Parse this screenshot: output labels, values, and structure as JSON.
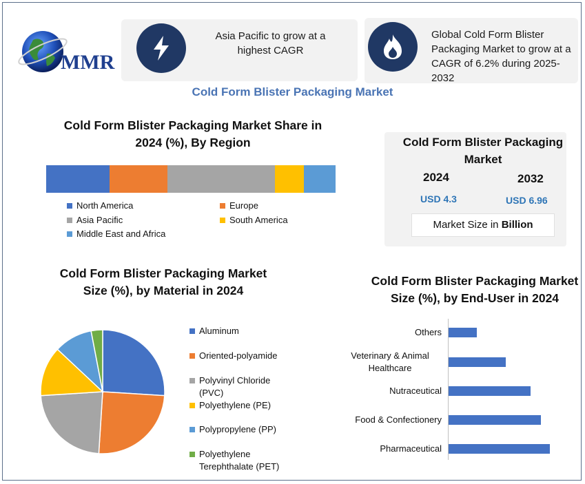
{
  "logo": {
    "text": "MMR"
  },
  "highlights": [
    {
      "icon": "lightning-icon",
      "text": "Asia Pacific to grow at a highest CAGR"
    },
    {
      "icon": "flame-icon",
      "text": "Global Cold Form Blister Packaging Market to grow at a CAGR of 6.2% during 2025-2032"
    }
  ],
  "main_title": "Cold Form Blister Packaging Market",
  "market_value": {
    "title": "Cold Form Blister Packaging Market",
    "year1": "2024",
    "value1": "USD 4.3",
    "year2": "2032",
    "value2": "USD 6.96",
    "size_label": "Market Size in",
    "size_unit": "Billion"
  },
  "colors": {
    "blue": "#4472c4",
    "orange": "#ed7d31",
    "gray": "#a5a5a5",
    "yellow": "#ffc000",
    "light_blue": "#5b9bd5",
    "green": "#70ad47",
    "icon_bg": "#203864",
    "title_blue": "#4a74b4"
  },
  "chart_data": [
    {
      "type": "bar",
      "orientation": "horizontal-stacked",
      "title": "Cold Form Blister Packaging Market Share in 2024 (%), By Region",
      "categories": [
        "North America",
        "Europe",
        "Asia Pacific",
        "South America",
        "Middle East and Africa"
      ],
      "values": [
        22,
        20,
        37,
        10,
        11
      ],
      "colors": [
        "#4472c4",
        "#ed7d31",
        "#a5a5a5",
        "#ffc000",
        "#5b9bd5"
      ],
      "legend": "bottom"
    },
    {
      "type": "pie",
      "title": "Cold Form Blister Packaging Market Size (%), by Material in 2024",
      "categories": [
        "Aluminum",
        "Oriented-polyamide",
        "Polyvinyl Chloride (PVC)",
        "Polyethylene (PE)",
        "Polypropylene (PP)",
        "Polyethylene Terephthalate (PET)"
      ],
      "values": [
        26,
        25,
        23,
        13,
        10,
        3
      ],
      "colors": [
        "#4472c4",
        "#ed7d31",
        "#a5a5a5",
        "#ffc000",
        "#5b9bd5",
        "#70ad47"
      ],
      "legend": "right"
    },
    {
      "type": "bar",
      "orientation": "horizontal",
      "title": "Cold Form Blister Packaging Market Size (%), by End-User in 2024",
      "categories": [
        "Others",
        "Veterinary & Animal Healthcare",
        "Nutraceutical",
        "Food & Confectionery",
        "Pharmaceutical"
      ],
      "values": [
        8,
        16,
        23,
        26,
        28.5
      ],
      "xlim": [
        0,
        30
      ],
      "color": "#4472c4",
      "grid": false
    }
  ]
}
